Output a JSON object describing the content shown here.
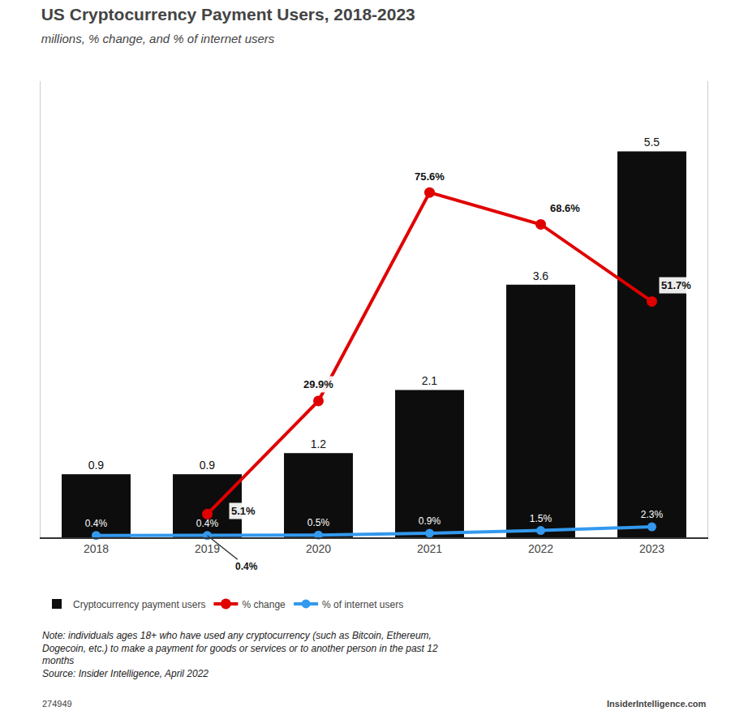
{
  "chart_data": {
    "type": "bar",
    "title": "US Cryptocurrency Payment Users, 2018-2023",
    "subtitle": "millions, % change, and % of internet users",
    "categories": [
      "2018",
      "2019",
      "2020",
      "2021",
      "2022",
      "2023"
    ],
    "series": [
      {
        "name": "Cryptocurrency payment users",
        "type": "bar",
        "color": "#0d0d0d",
        "values": [
          0.9,
          0.9,
          1.2,
          2.1,
          3.6,
          5.5
        ]
      },
      {
        "name": "% change",
        "type": "line",
        "color": "#e00000",
        "axis": "y2",
        "values": [
          null,
          5.1,
          29.9,
          75.6,
          68.6,
          51.7
        ],
        "value_labels": [
          null,
          "5.1%",
          "29.9%",
          "75.6%",
          "68.6%",
          "51.7%"
        ]
      },
      {
        "name": "% of internet users",
        "type": "line",
        "color": "#3399ee",
        "axis": "y2",
        "values": [
          0.4,
          0.4,
          0.5,
          0.9,
          1.5,
          2.3
        ],
        "value_labels": [
          "0.4%",
          "0.4%",
          "0.5%",
          "0.9%",
          "1.5%",
          "2.3%"
        ]
      }
    ],
    "ylim": [
      0,
      6.5
    ],
    "y2lim": [
      0,
      100
    ],
    "data_labels": true,
    "tick_labels": "x",
    "grid": false,
    "legend": "bottom",
    "annotations": [
      {
        "text": "0.4%",
        "x": 1,
        "y": 0.4,
        "axis": "y2"
      }
    ],
    "notes": [
      "Note: individuals ages 18+ who have used any cryptocurrency (such as Bitcoin, Ethereum,",
      "Dogecoin, etc.) to make a payment for goods or services or to another person in the past 12",
      "months",
      "Source: Insider Intelligence, April 2022"
    ],
    "footer": [
      "274949",
      "InsiderIntelligence.com"
    ]
  }
}
